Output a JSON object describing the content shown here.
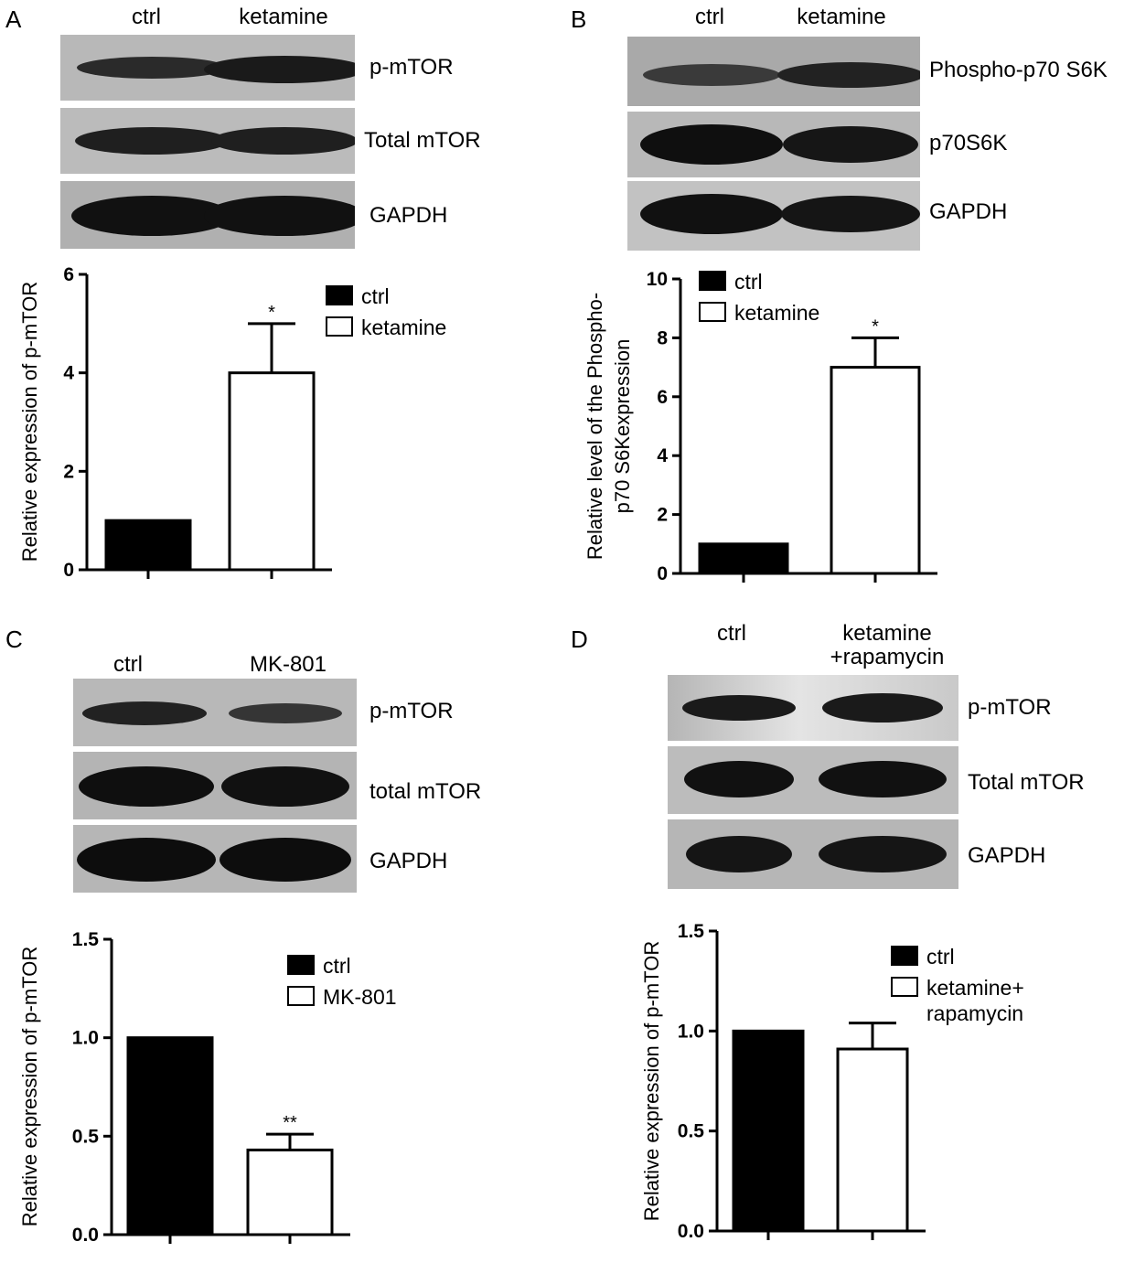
{
  "panels": [
    {
      "letter": "A",
      "lanes": [
        "ctrl",
        "ketamine"
      ],
      "blot_labels": [
        "p-mTOR",
        "Total mTOR",
        "GAPDH"
      ],
      "chart_data": {
        "type": "bar",
        "categories": [
          "ctrl",
          "ketamine"
        ],
        "values": [
          1.0,
          4.0
        ],
        "errors": [
          0,
          1.0
        ],
        "significance": [
          "",
          "*"
        ],
        "ylabel": "Relative expression of p-mTOR",
        "xlabel": "",
        "ylim": [
          0,
          6
        ],
        "yticks": [
          "0",
          "2",
          "4",
          "6"
        ],
        "legend": [
          "ctrl",
          "ketamine"
        ],
        "legend_position": "top-right",
        "grid": false
      }
    },
    {
      "letter": "B",
      "lanes": [
        "ctrl",
        "ketamine"
      ],
      "blot_labels": [
        "Phospho-p70 S6K",
        "p70S6K",
        "GAPDH"
      ],
      "chart_data": {
        "type": "bar",
        "categories": [
          "ctrl",
          "ketamine"
        ],
        "values": [
          1.0,
          7.0
        ],
        "errors": [
          0,
          1.0
        ],
        "significance": [
          "",
          "*"
        ],
        "ylabel": [
          "Relative level of the Phospho-",
          "p70 S6Kexpression"
        ],
        "xlabel": "",
        "ylim": [
          0,
          10
        ],
        "yticks": [
          "0",
          "2",
          "4",
          "6",
          "8",
          "10"
        ],
        "legend": [
          "ctrl",
          "ketamine"
        ],
        "legend_position": "top-left",
        "grid": false
      }
    },
    {
      "letter": "C",
      "lanes": [
        "ctrl",
        "MK-801"
      ],
      "blot_labels": [
        "p-mTOR",
        "total mTOR",
        "GAPDH"
      ],
      "chart_data": {
        "type": "bar",
        "categories": [
          "ctrl",
          "MK-801"
        ],
        "values": [
          1.0,
          0.43
        ],
        "errors": [
          0,
          0.08
        ],
        "significance": [
          "",
          "**"
        ],
        "ylabel": "Relative expression of p-mTOR",
        "xlabel": "",
        "ylim": [
          0,
          1.5
        ],
        "yticks": [
          "0.0",
          "0.5",
          "1.0",
          "1.5"
        ],
        "legend": [
          "ctrl",
          "MK-801"
        ],
        "legend_position": "top-right",
        "grid": false
      }
    },
    {
      "letter": "D",
      "lanes": [
        "ctrl",
        "ketamine\n+rapamycin"
      ],
      "blot_labels": [
        "p-mTOR",
        "Total mTOR",
        "GAPDH"
      ],
      "chart_data": {
        "type": "bar",
        "categories": [
          "ctrl",
          "ketamine+rapamycin"
        ],
        "values": [
          1.0,
          0.91
        ],
        "errors": [
          0,
          0.13
        ],
        "significance": [
          "",
          ""
        ],
        "ylabel": "Relative expression of p-mTOR",
        "xlabel": "",
        "ylim": [
          0,
          1.5
        ],
        "yticks": [
          "0.0",
          "0.5",
          "1.0",
          "1.5"
        ],
        "legend": [
          "ctrl",
          "ketamine+\nrapamycin"
        ],
        "legend_position": "top-right",
        "grid": false
      }
    }
  ],
  "colors": {
    "ctrl": "#000000",
    "treatment": "#ffffff",
    "blot_bg": "#bdbdbd",
    "band": "#1a1a1a"
  }
}
